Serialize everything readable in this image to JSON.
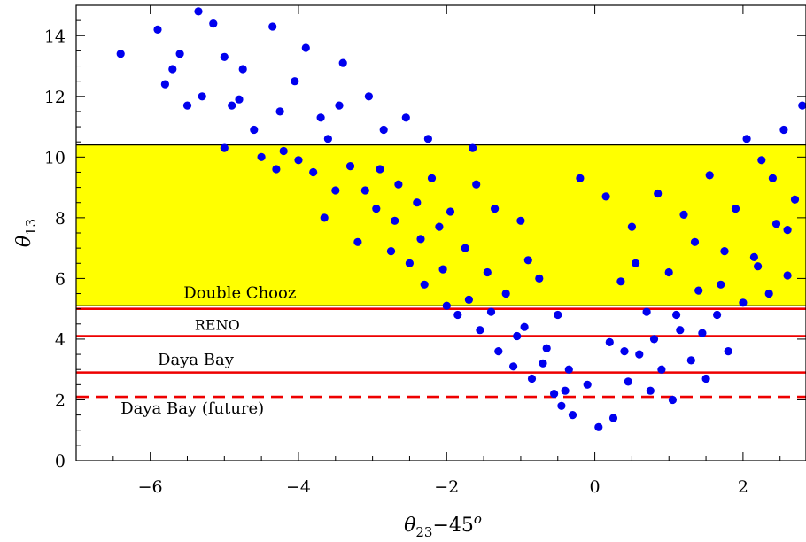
{
  "chart_data": {
    "type": "scatter",
    "title": "",
    "xlabel": {
      "theta": "θ",
      "sub": "23",
      "rest": "−45",
      "sup": "o"
    },
    "ylabel": {
      "theta": "θ",
      "sub": "13"
    },
    "xlim": [
      -7,
      2.85
    ],
    "ylim": [
      0,
      15
    ],
    "xticks": [
      -6,
      -4,
      -2,
      0,
      2
    ],
    "xtick_labels": [
      "−6",
      "−4",
      "−2",
      "0",
      "2"
    ],
    "yticks": [
      0,
      2,
      4,
      6,
      8,
      10,
      12,
      14
    ],
    "ytick_labels": [
      "0",
      "2",
      "4",
      "6",
      "8",
      "10",
      "12",
      "14"
    ],
    "grid": false,
    "band": {
      "y0": 5.1,
      "y1": 10.4,
      "color": "#ffff00",
      "edge_color": "#000000"
    },
    "hlines": [
      {
        "y": 5.0,
        "style": "solid",
        "color": "#ee0000"
      },
      {
        "y": 4.1,
        "style": "solid",
        "color": "#ee0000"
      },
      {
        "y": 2.9,
        "style": "solid",
        "color": "#ee0000"
      },
      {
        "y": 2.1,
        "style": "dashed",
        "color": "#ee0000"
      }
    ],
    "annotations": [
      {
        "text": "Double Chooz",
        "x": -5.55,
        "y": 5.35
      },
      {
        "text": "RENO",
        "x": -5.4,
        "y": 4.3
      },
      {
        "text": "Daya Bay",
        "x": -5.9,
        "y": 3.15
      },
      {
        "text": "Daya Bay (future)",
        "x": -6.4,
        "y": 1.55
      }
    ],
    "series": [
      {
        "color": "#0000ee",
        "points": [
          [
            -6.4,
            13.4
          ],
          [
            -5.9,
            14.2
          ],
          [
            -5.8,
            12.4
          ],
          [
            -5.6,
            13.4
          ],
          [
            -5.5,
            11.7
          ],
          [
            -5.35,
            14.8
          ],
          [
            -5.3,
            12.0
          ],
          [
            -5.15,
            14.4
          ],
          [
            -5.0,
            10.3
          ],
          [
            -4.9,
            11.7
          ],
          [
            -4.75,
            12.9
          ],
          [
            -4.6,
            10.9
          ],
          [
            -4.35,
            14.3
          ],
          [
            -4.3,
            9.6
          ],
          [
            -4.2,
            10.2
          ],
          [
            -4.05,
            12.5
          ],
          [
            -3.9,
            13.6
          ],
          [
            -3.8,
            9.5
          ],
          [
            -3.7,
            11.3
          ],
          [
            -3.6,
            10.6
          ],
          [
            -3.5,
            8.9
          ],
          [
            -3.4,
            13.1
          ],
          [
            -3.3,
            9.7
          ],
          [
            -3.2,
            7.2
          ],
          [
            -3.05,
            12.0
          ],
          [
            -2.95,
            8.3
          ],
          [
            -2.85,
            10.9
          ],
          [
            -2.75,
            6.9
          ],
          [
            -2.65,
            9.1
          ],
          [
            -2.55,
            11.3
          ],
          [
            -2.5,
            6.5
          ],
          [
            -2.4,
            8.5
          ],
          [
            -2.3,
            5.8
          ],
          [
            -2.2,
            9.3
          ],
          [
            -2.1,
            7.7
          ],
          [
            -2.0,
            5.1
          ],
          [
            -1.95,
            8.2
          ],
          [
            -1.85,
            4.8
          ],
          [
            -1.75,
            7.0
          ],
          [
            -1.65,
            10.3
          ],
          [
            -1.55,
            4.3
          ],
          [
            -1.45,
            6.2
          ],
          [
            -1.35,
            8.3
          ],
          [
            -1.3,
            3.6
          ],
          [
            -1.2,
            5.5
          ],
          [
            -1.1,
            3.1
          ],
          [
            -1.0,
            7.9
          ],
          [
            -0.95,
            4.4
          ],
          [
            -0.85,
            2.7
          ],
          [
            -0.75,
            6.0
          ],
          [
            -0.65,
            3.7
          ],
          [
            -0.55,
            2.2
          ],
          [
            -0.5,
            4.8
          ],
          [
            -0.45,
            1.8
          ],
          [
            -0.35,
            3.0
          ],
          [
            -0.3,
            1.5
          ],
          [
            -0.2,
            9.3
          ],
          [
            -0.1,
            2.5
          ],
          [
            0.05,
            1.1
          ],
          [
            0.15,
            8.7
          ],
          [
            0.2,
            3.9
          ],
          [
            0.25,
            1.4
          ],
          [
            0.35,
            5.9
          ],
          [
            0.45,
            2.6
          ],
          [
            0.5,
            7.7
          ],
          [
            0.6,
            3.5
          ],
          [
            0.7,
            4.9
          ],
          [
            0.75,
            2.3
          ],
          [
            0.85,
            8.8
          ],
          [
            0.9,
            3.0
          ],
          [
            1.0,
            6.2
          ],
          [
            1.05,
            2.0
          ],
          [
            1.15,
            4.3
          ],
          [
            1.2,
            8.1
          ],
          [
            1.3,
            3.3
          ],
          [
            1.4,
            5.6
          ],
          [
            1.5,
            2.7
          ],
          [
            1.55,
            9.4
          ],
          [
            1.65,
            4.8
          ],
          [
            1.75,
            6.9
          ],
          [
            1.8,
            3.6
          ],
          [
            1.9,
            8.3
          ],
          [
            2.0,
            5.2
          ],
          [
            2.05,
            10.6
          ],
          [
            2.15,
            6.7
          ],
          [
            2.25,
            9.9
          ],
          [
            2.35,
            5.5
          ],
          [
            2.45,
            7.8
          ],
          [
            2.55,
            10.9
          ],
          [
            2.6,
            6.1
          ],
          [
            2.7,
            8.6
          ],
          [
            2.8,
            11.7
          ],
          [
            -4.8,
            11.9
          ],
          [
            -4.5,
            10.0
          ],
          [
            -4.0,
            9.9
          ],
          [
            -3.65,
            8.0
          ],
          [
            -3.1,
            8.9
          ],
          [
            -2.7,
            7.9
          ],
          [
            -2.35,
            7.3
          ],
          [
            -2.05,
            6.3
          ],
          [
            -1.7,
            5.3
          ],
          [
            -1.4,
            4.9
          ],
          [
            -1.05,
            4.1
          ],
          [
            -0.7,
            3.2
          ],
          [
            -0.4,
            2.3
          ],
          [
            0.4,
            3.6
          ],
          [
            0.8,
            4.0
          ],
          [
            1.1,
            4.8
          ],
          [
            1.45,
            4.2
          ],
          [
            1.7,
            5.8
          ],
          [
            2.2,
            6.4
          ],
          [
            2.6,
            7.6
          ],
          [
            -5.7,
            12.9
          ],
          [
            -5.0,
            13.3
          ],
          [
            -4.25,
            11.5
          ],
          [
            -3.45,
            11.7
          ],
          [
            -2.9,
            9.6
          ],
          [
            -2.25,
            10.6
          ],
          [
            -1.6,
            9.1
          ],
          [
            -0.9,
            6.6
          ],
          [
            0.55,
            6.5
          ],
          [
            1.35,
            7.2
          ],
          [
            2.4,
            9.3
          ]
        ]
      }
    ]
  }
}
